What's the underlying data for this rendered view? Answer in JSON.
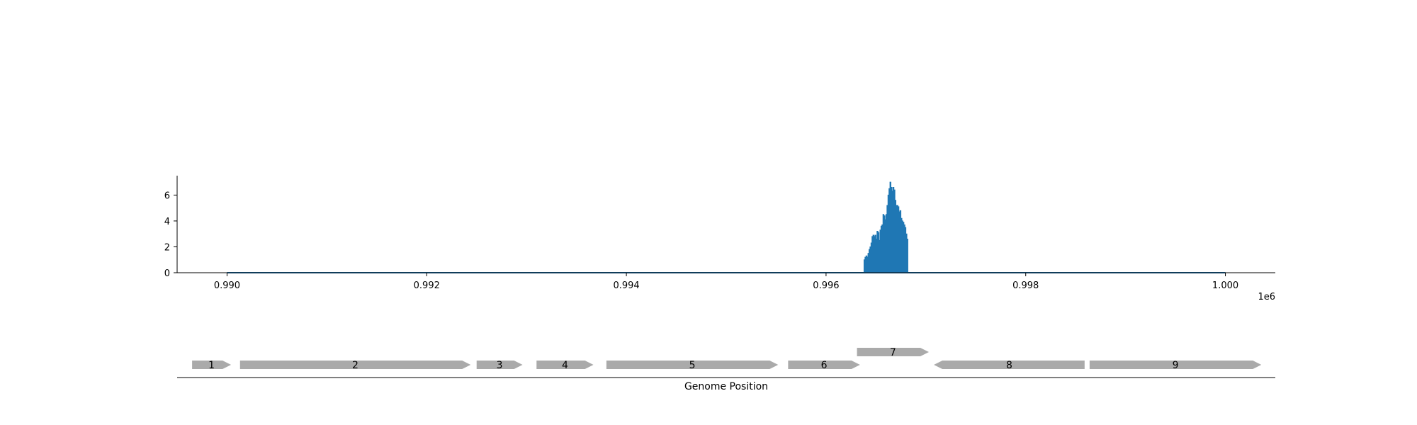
{
  "chart_data": [
    {
      "type": "area",
      "title": "",
      "xlabel": "",
      "ylabel": "",
      "x_multiplier_label": "1e6",
      "xlim": [
        989500,
        1000500
      ],
      "ylim": [
        0,
        7.5
      ],
      "grid": false,
      "x_ticks": [
        990000,
        992000,
        994000,
        996000,
        998000,
        1000000
      ],
      "x_tick_labels": [
        "0.990",
        "0.992",
        "0.994",
        "0.996",
        "0.998",
        "1.000"
      ],
      "y_ticks": [
        0,
        2,
        4,
        6
      ],
      "y_tick_labels": [
        "0",
        "2",
        "4",
        "6"
      ],
      "color": "#1f77b4",
      "baseline_range": [
        990000,
        1000000
      ],
      "series": [
        {
          "x": [
            996380,
            996390,
            996400,
            996410,
            996420,
            996430,
            996440,
            996450,
            996460,
            996470,
            996480,
            996490,
            996500,
            996510,
            996520,
            996530,
            996540,
            996550,
            996560,
            996570,
            996580,
            996590,
            996600,
            996610,
            996620,
            996630,
            996640,
            996650,
            996660,
            996670,
            996680,
            996690,
            996700,
            996710,
            996720,
            996730,
            996740,
            996750,
            996760,
            996770,
            996780,
            996790,
            996800,
            996810,
            996820,
            996830,
            996840
          ],
          "y": [
            1.0,
            1.2,
            1.3,
            1.2,
            1.5,
            1.8,
            2.0,
            2.3,
            2.8,
            2.9,
            2.8,
            2.9,
            2.6,
            3.2,
            3.1,
            2.5,
            3.3,
            3.6,
            3.7,
            4.5,
            4.4,
            4.1,
            4.5,
            5.2,
            6.0,
            6.5,
            7.0,
            6.6,
            6.3,
            6.6,
            6.4,
            5.6,
            5.2,
            5.2,
            5.1,
            4.7,
            4.8,
            4.2,
            4.0,
            3.9,
            3.7,
            3.5,
            3.0,
            2.6,
            0,
            0,
            0
          ]
        }
      ]
    },
    {
      "type": "gene_track",
      "xlabel": "Genome Position",
      "color": "#aaaaaa",
      "genes": [
        {
          "label": "1",
          "start": 989650,
          "end": 990040,
          "strand": "+",
          "row": 0
        },
        {
          "label": "2",
          "start": 990130,
          "end": 992440,
          "strand": "+",
          "row": 0
        },
        {
          "label": "3",
          "start": 992500,
          "end": 992960,
          "strand": "+",
          "row": 0
        },
        {
          "label": "4",
          "start": 993100,
          "end": 993670,
          "strand": "+",
          "row": 0
        },
        {
          "label": "5",
          "start": 993800,
          "end": 995520,
          "strand": "+",
          "row": 0
        },
        {
          "label": "6",
          "start": 995620,
          "end": 996340,
          "strand": "+",
          "row": 0
        },
        {
          "label": "7",
          "start": 996310,
          "end": 997030,
          "strand": "+",
          "row": 1
        },
        {
          "label": "8",
          "start": 997080,
          "end": 998590,
          "strand": "-",
          "row": 0
        },
        {
          "label": "9",
          "start": 998640,
          "end": 1000360,
          "strand": "+",
          "row": 0
        }
      ]
    }
  ]
}
